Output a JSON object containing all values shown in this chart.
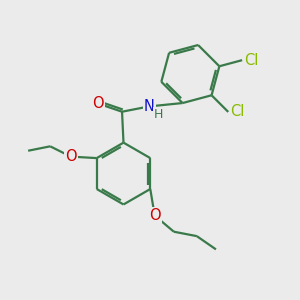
{
  "bg_color": "#ebebeb",
  "bond_color": "#3a7a4a",
  "bond_width": 1.6,
  "atom_colors": {
    "O": "#cc0000",
    "N": "#1111cc",
    "Cl": "#88bb00",
    "H": "#3a7a4a",
    "C": "#3a7a4a"
  },
  "font_size": 9.5,
  "fig_size": [
    3.0,
    3.0
  ],
  "dpi": 100,
  "xlim": [
    0,
    10
  ],
  "ylim": [
    0,
    10
  ]
}
